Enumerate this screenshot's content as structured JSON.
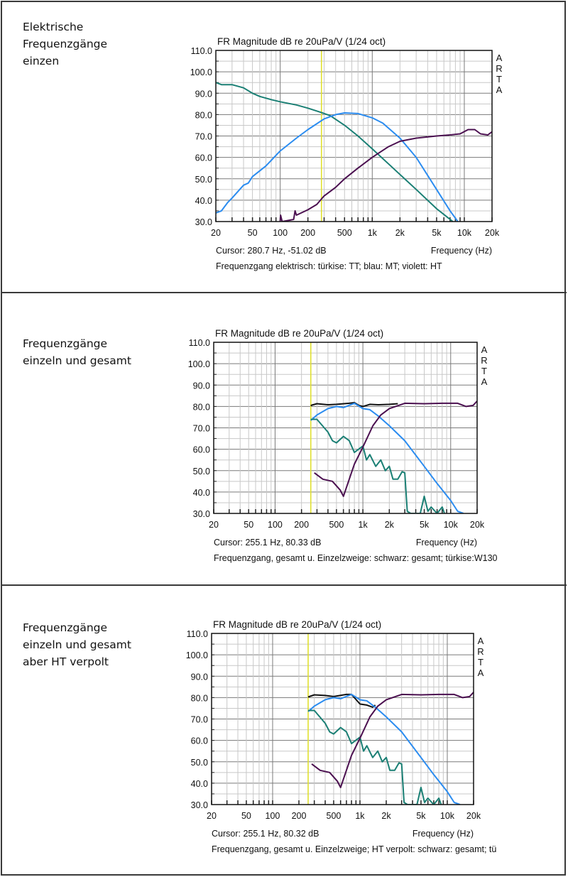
{
  "panels": [
    {
      "label_lines": [
        "Elektrische",
        "Frequenzgänge",
        "einzen"
      ]
    },
    {
      "label_lines": [
        "Frequenzgänge",
        "einzeln und gesamt"
      ]
    },
    {
      "label_lines": [
        "Frequenzgänge",
        "einzeln und gesamt",
        "aber HT verpolt"
      ]
    }
  ],
  "colors": {
    "turquoise": "#1a7f74",
    "blue": "#2b8cf0",
    "violet": "#4b1050",
    "black": "#111111",
    "cursor": "#e0e030",
    "grid_major": "#7a7a7a",
    "grid_minor": "#c8c8c8"
  },
  "chart_data": [
    {
      "type": "line",
      "title": "FR Magnitude dB re 20uPa/V (1/24 oct)",
      "watermark": [
        "A",
        "R",
        "T",
        "A"
      ],
      "xlabel": "Frequency (Hz)",
      "xscale": "log",
      "xlim": [
        20,
        20000
      ],
      "ylim": [
        30,
        110
      ],
      "xticks": [
        20,
        50,
        100,
        200,
        500,
        1000,
        2000,
        5000,
        10000,
        20000
      ],
      "xtick_labels": [
        "20",
        "50",
        "100",
        "200",
        "500",
        "1k",
        "2k",
        "5k",
        "10k",
        "20k"
      ],
      "yticks": [
        110,
        100,
        90,
        80,
        70,
        60,
        50,
        40,
        30
      ],
      "ytick_labels": [
        "110.0",
        "100.0",
        "90.0",
        "80.0",
        "70.0",
        "60.0",
        "50.0",
        "40.0",
        "30.0"
      ],
      "grid": true,
      "cursor_hz": 280.7,
      "cursor_text": "Cursor: 280.7 Hz, -51.02 dB",
      "caption": "Frequenzgang elektrisch: türkise: TT; blau: MT; violett: HT",
      "series": [
        {
          "name": "TT",
          "color": "turquoise",
          "points": [
            [
              20,
              95
            ],
            [
              23,
              94
            ],
            [
              30,
              94
            ],
            [
              40,
              92.5
            ],
            [
              50,
              90
            ],
            [
              60,
              88.5
            ],
            [
              80,
              87
            ],
            [
              100,
              86
            ],
            [
              150,
              84.5
            ],
            [
              200,
              83
            ],
            [
              280,
              81
            ],
            [
              350,
              79.5
            ],
            [
              500,
              75
            ],
            [
              700,
              70
            ],
            [
              1000,
              64
            ],
            [
              1500,
              57
            ],
            [
              2000,
              52
            ],
            [
              3000,
              45
            ],
            [
              5000,
              36
            ],
            [
              7500,
              30
            ]
          ]
        },
        {
          "name": "MT",
          "color": "blue",
          "points": [
            [
              20,
              34
            ],
            [
              23,
              35
            ],
            [
              27,
              39
            ],
            [
              30,
              41
            ],
            [
              40,
              47
            ],
            [
              45,
              48
            ],
            [
              50,
              51
            ],
            [
              70,
              56
            ],
            [
              100,
              63
            ],
            [
              150,
              69
            ],
            [
              200,
              73
            ],
            [
              300,
              78
            ],
            [
              400,
              80
            ],
            [
              500,
              80.8
            ],
            [
              700,
              80.5
            ],
            [
              1000,
              78.5
            ],
            [
              1300,
              76
            ],
            [
              2000,
              69
            ],
            [
              3000,
              60
            ],
            [
              5000,
              45
            ],
            [
              7000,
              35
            ],
            [
              8500,
              30
            ]
          ]
        },
        {
          "name": "HT",
          "color": "violet",
          "points": [
            [
              100,
              30
            ],
            [
              101,
              33
            ],
            [
              105,
              30
            ],
            [
              140,
              31
            ],
            [
              145,
              35
            ],
            [
              150,
              33
            ],
            [
              200,
              35.5
            ],
            [
              250,
              38
            ],
            [
              300,
              42
            ],
            [
              400,
              46
            ],
            [
              500,
              50
            ],
            [
              700,
              55
            ],
            [
              1000,
              60
            ],
            [
              1500,
              65
            ],
            [
              2000,
              67.5
            ],
            [
              3000,
              69
            ],
            [
              5000,
              70
            ],
            [
              7000,
              70.5
            ],
            [
              9000,
              71
            ],
            [
              11000,
              73
            ],
            [
              13000,
              73
            ],
            [
              15000,
              71
            ],
            [
              18000,
              70.5
            ],
            [
              20000,
              72
            ]
          ]
        }
      ]
    },
    {
      "type": "line",
      "title": "FR Magnitude dB re 20uPa/V (1/24 oct)",
      "watermark": [
        "A",
        "R",
        "T",
        "A"
      ],
      "xlabel": "Frequency (Hz)",
      "xscale": "log",
      "xlim": [
        20,
        20000
      ],
      "ylim": [
        30,
        110
      ],
      "xticks": [
        20,
        50,
        100,
        200,
        500,
        1000,
        2000,
        5000,
        10000,
        20000
      ],
      "xtick_labels": [
        "20",
        "50",
        "100",
        "200",
        "500",
        "1k",
        "2k",
        "5k",
        "10k",
        "20k"
      ],
      "yticks": [
        110,
        100,
        90,
        80,
        70,
        60,
        50,
        40,
        30
      ],
      "ytick_labels": [
        "110.0",
        "100.0",
        "90.0",
        "80.0",
        "70.0",
        "60.0",
        "50.0",
        "40.0",
        "30.0"
      ],
      "grid": true,
      "cursor_hz": 255.1,
      "cursor_text": "Cursor: 255.1 Hz, 80.33 dB",
      "caption": "Frequenzgang, gesamt u. Einzelzweige: schwarz: gesamt; türkise:W130",
      "series": [
        {
          "name": "gesamt",
          "color": "black",
          "points": [
            [
              255,
              80.3
            ],
            [
              260,
              80.6
            ],
            [
              300,
              81.3
            ],
            [
              400,
              80.8
            ],
            [
              500,
              81
            ],
            [
              700,
              81.5
            ],
            [
              800,
              81.8
            ],
            [
              900,
              80.5
            ],
            [
              1000,
              80
            ],
            [
              1200,
              81
            ],
            [
              1500,
              80.8
            ],
            [
              2000,
              81
            ],
            [
              2500,
              81.3
            ]
          ]
        },
        {
          "name": "MT",
          "color": "blue",
          "points": [
            [
              255,
              73.5
            ],
            [
              300,
              76
            ],
            [
              400,
              79
            ],
            [
              500,
              80
            ],
            [
              600,
              79.5
            ],
            [
              800,
              81.5
            ],
            [
              1000,
              79
            ],
            [
              1200,
              78.5
            ],
            [
              1500,
              75.5
            ],
            [
              2000,
              71
            ],
            [
              3000,
              64
            ],
            [
              5000,
              52
            ],
            [
              7000,
              44
            ],
            [
              10000,
              36
            ],
            [
              12000,
              31
            ],
            [
              14000,
              30
            ]
          ]
        },
        {
          "name": "TT",
          "color": "turquoise",
          "points": [
            [
              255,
              74
            ],
            [
              300,
              74
            ],
            [
              400,
              68
            ],
            [
              450,
              64
            ],
            [
              500,
              63
            ],
            [
              600,
              66
            ],
            [
              700,
              64
            ],
            [
              800,
              58.5
            ],
            [
              1000,
              61.5
            ],
            [
              1100,
              55
            ],
            [
              1200,
              57.5
            ],
            [
              1400,
              52
            ],
            [
              1600,
              55
            ],
            [
              1800,
              50
            ],
            [
              2000,
              52
            ],
            [
              2200,
              46
            ],
            [
              2500,
              46
            ],
            [
              2800,
              49.5
            ],
            [
              3000,
              49
            ],
            [
              3200,
              31
            ],
            [
              3500,
              30
            ],
            [
              4500,
              30
            ],
            [
              5000,
              38
            ],
            [
              5500,
              31
            ],
            [
              6000,
              33
            ],
            [
              7000,
              30
            ],
            [
              8000,
              33
            ],
            [
              8500,
              30
            ]
          ]
        },
        {
          "name": "HT",
          "color": "violet",
          "points": [
            [
              280,
              49
            ],
            [
              350,
              46
            ],
            [
              450,
              45
            ],
            [
              550,
              41
            ],
            [
              600,
              38
            ],
            [
              700,
              46
            ],
            [
              800,
              53
            ],
            [
              1000,
              61
            ],
            [
              1300,
              71
            ],
            [
              1600,
              76
            ],
            [
              2000,
              79
            ],
            [
              3000,
              81.5
            ],
            [
              5000,
              81.3
            ],
            [
              8000,
              81.5
            ],
            [
              12000,
              81.5
            ],
            [
              15000,
              80
            ],
            [
              18000,
              80.5
            ],
            [
              20000,
              82.5
            ]
          ]
        }
      ]
    },
    {
      "type": "line",
      "title": "FR Magnitude dB re 20uPa/V (1/24 oct)",
      "watermark": [
        "A",
        "R",
        "T",
        "A"
      ],
      "xlabel": "Frequency (Hz)",
      "xscale": "log",
      "xlim": [
        20,
        20000
      ],
      "ylim": [
        30,
        110
      ],
      "xticks": [
        20,
        50,
        100,
        200,
        500,
        1000,
        2000,
        5000,
        10000,
        20000
      ],
      "xtick_labels": [
        "20",
        "50",
        "100",
        "200",
        "500",
        "1k",
        "2k",
        "5k",
        "10k",
        "20k"
      ],
      "yticks": [
        110,
        100,
        90,
        80,
        70,
        60,
        50,
        40,
        30
      ],
      "ytick_labels": [
        "110.0",
        "100.0",
        "90.0",
        "80.0",
        "70.0",
        "60.0",
        "50.0",
        "40.0",
        "30.0"
      ],
      "grid": true,
      "cursor_hz": 255.1,
      "cursor_text": "Cursor: 255.1 Hz, 80.32 dB",
      "caption": "Frequenzgang, gesamt u. Einzelzweige; HT verpolt: schwarz: gesamt; tü",
      "series": [
        {
          "name": "gesamt",
          "color": "black",
          "points": [
            [
              255,
              80.3
            ],
            [
              300,
              81.3
            ],
            [
              400,
              81
            ],
            [
              500,
              80.5
            ],
            [
              700,
              81.5
            ],
            [
              800,
              81.5
            ],
            [
              1000,
              77
            ],
            [
              1200,
              76.5
            ],
            [
              1400,
              75.5
            ],
            [
              1500,
              76.5
            ]
          ]
        },
        {
          "name": "MT",
          "color": "blue",
          "points": [
            [
              255,
              73.5
            ],
            [
              300,
              76
            ],
            [
              400,
              79
            ],
            [
              500,
              80
            ],
            [
              600,
              79.5
            ],
            [
              800,
              81.5
            ],
            [
              1000,
              79
            ],
            [
              1200,
              78.5
            ],
            [
              1500,
              75.5
            ],
            [
              2000,
              71
            ],
            [
              3000,
              64
            ],
            [
              5000,
              52
            ],
            [
              7000,
              44
            ],
            [
              10000,
              36
            ],
            [
              12000,
              31
            ],
            [
              14000,
              30
            ]
          ]
        },
        {
          "name": "TT",
          "color": "turquoise",
          "points": [
            [
              255,
              74
            ],
            [
              300,
              74
            ],
            [
              400,
              68
            ],
            [
              450,
              64
            ],
            [
              500,
              63
            ],
            [
              600,
              66
            ],
            [
              700,
              64
            ],
            [
              800,
              58.5
            ],
            [
              1000,
              61.5
            ],
            [
              1100,
              55
            ],
            [
              1200,
              57.5
            ],
            [
              1400,
              52
            ],
            [
              1600,
              55
            ],
            [
              1800,
              50
            ],
            [
              2000,
              52
            ],
            [
              2200,
              46
            ],
            [
              2500,
              46
            ],
            [
              2800,
              49.5
            ],
            [
              3000,
              49
            ],
            [
              3200,
              31
            ],
            [
              3500,
              30
            ],
            [
              4500,
              30
            ],
            [
              5000,
              38
            ],
            [
              5500,
              31
            ],
            [
              6000,
              33
            ],
            [
              7000,
              30
            ],
            [
              8000,
              33
            ],
            [
              8500,
              30
            ]
          ]
        },
        {
          "name": "HT",
          "color": "violet",
          "points": [
            [
              280,
              49
            ],
            [
              350,
              46
            ],
            [
              450,
              45
            ],
            [
              550,
              41
            ],
            [
              600,
              38
            ],
            [
              700,
              46
            ],
            [
              800,
              53
            ],
            [
              1000,
              61
            ],
            [
              1300,
              71
            ],
            [
              1600,
              76
            ],
            [
              2000,
              79
            ],
            [
              3000,
              81.5
            ],
            [
              5000,
              81.3
            ],
            [
              8000,
              81.5
            ],
            [
              12000,
              81.5
            ],
            [
              15000,
              80
            ],
            [
              18000,
              80.5
            ],
            [
              20000,
              82.5
            ]
          ]
        }
      ]
    }
  ]
}
